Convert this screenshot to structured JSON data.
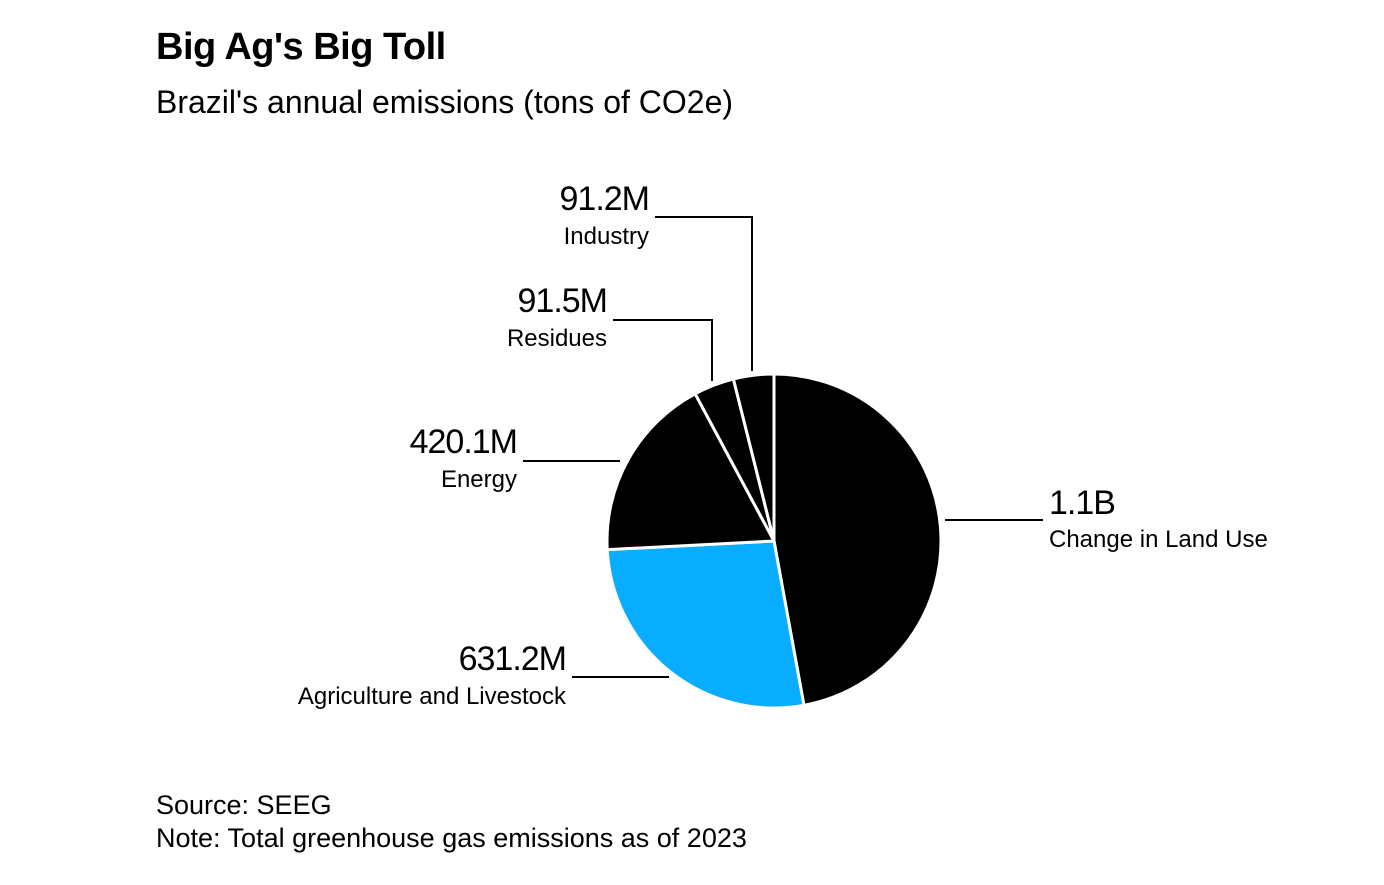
{
  "chart_data": {
    "type": "pie",
    "title": "Big Ag's Big Toll",
    "subtitle": "Brazil's annual emissions (tons of CO2e)",
    "unit": "tons of CO2e",
    "start_angle": "12 o'clock",
    "direction": "clockwise",
    "slices": [
      {
        "category": "Change in Land Use",
        "value": 1100000000,
        "label": "1.1B",
        "color": "#000000",
        "label_side": "right"
      },
      {
        "category": "Agriculture and Livestock",
        "value": 631200000,
        "label": "631.2M",
        "color": "#08adff",
        "label_side": "left"
      },
      {
        "category": "Energy",
        "value": 420100000,
        "label": "420.1M",
        "color": "#000000",
        "label_side": "left"
      },
      {
        "category": "Residues",
        "value": 91500000,
        "label": "91.5M",
        "color": "#000000",
        "label_side": "left"
      },
      {
        "category": "Industry",
        "value": 91200000,
        "label": "91.2M",
        "color": "#000000",
        "label_side": "left"
      }
    ],
    "slice_separator_color": "#ffffff",
    "leader_line_color": "#000000"
  },
  "footer": {
    "source": "Source: SEEG",
    "note": "Note: Total greenhouse gas emissions as of 2023"
  }
}
